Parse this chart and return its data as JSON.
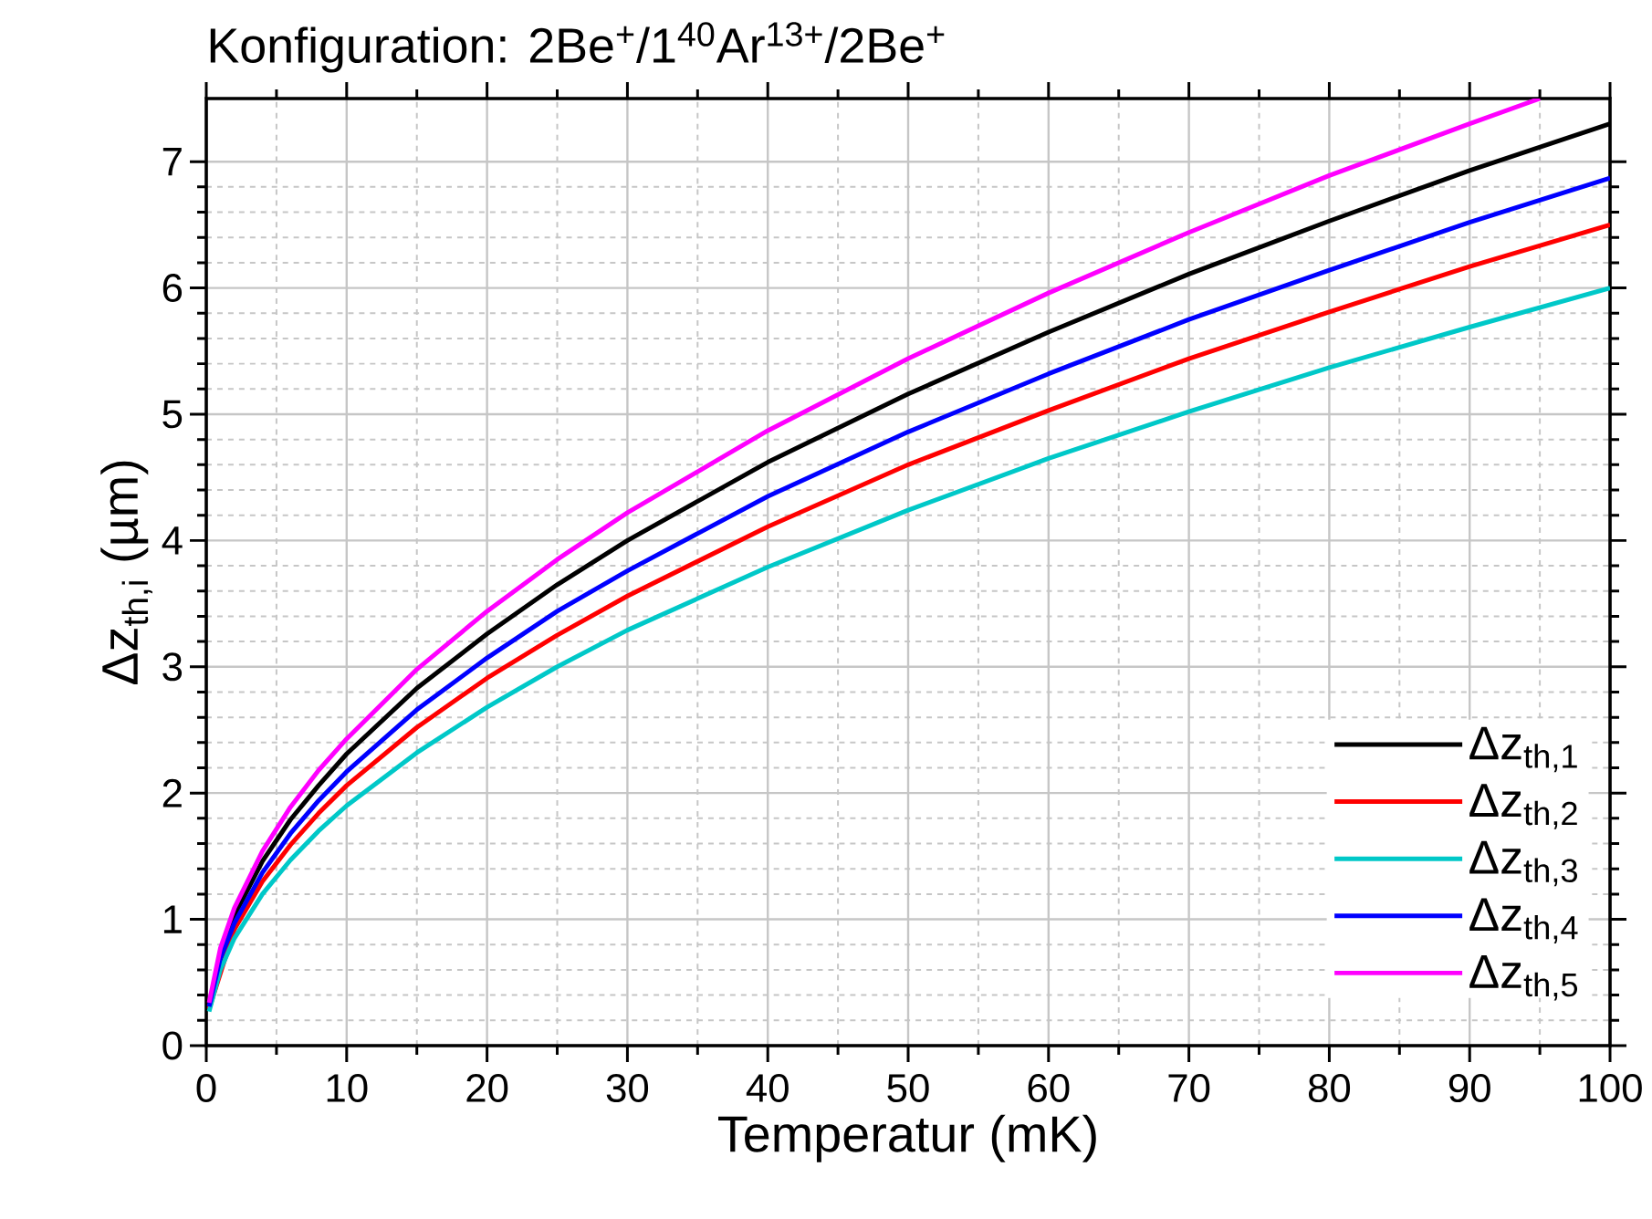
{
  "chart_data": {
    "type": "line",
    "title": "Konfiguration: 2Be$^{+}$/1$^{40}$Ar$^{13+}$/2Be$^{+}$",
    "xlabel": "Temperatur (mK)",
    "ylabel": "Δz$_{th,i}$ (µm)",
    "x": [
      0.2,
      1,
      2,
      4,
      6,
      8,
      10,
      15,
      20,
      25,
      30,
      40,
      50,
      60,
      70,
      80,
      90,
      100
    ],
    "series": [
      {
        "name": "Δz$_{th,1}$",
        "color": "#000000",
        "values": [
          0.33,
          null,
          1.03,
          1.46,
          1.79,
          2.06,
          2.31,
          2.83,
          3.26,
          3.65,
          4.0,
          4.62,
          5.16,
          5.65,
          6.11,
          6.53,
          6.93,
          7.3
        ]
      },
      {
        "name": "Δz$_{th,2}$",
        "color": "#ff0000",
        "values": [
          0.29,
          null,
          0.92,
          1.3,
          1.59,
          1.84,
          2.06,
          2.52,
          2.91,
          3.25,
          3.56,
          4.11,
          4.6,
          5.03,
          5.44,
          5.81,
          6.17,
          6.5
        ]
      },
      {
        "name": "Δz$_{th,3}$",
        "color": "#00c8c8",
        "values": [
          0.27,
          0.6,
          0.85,
          1.2,
          1.47,
          1.7,
          1.9,
          2.32,
          2.68,
          3.0,
          3.29,
          3.79,
          4.24,
          4.65,
          5.02,
          5.37,
          5.69,
          6.0
        ]
      },
      {
        "name": "Δz$_{th,4}$",
        "color": "#0000ff",
        "values": [
          0.31,
          0.69,
          0.97,
          1.37,
          1.68,
          1.94,
          2.17,
          2.66,
          3.07,
          3.44,
          3.76,
          4.35,
          4.86,
          5.32,
          5.75,
          6.14,
          6.52,
          6.87
        ]
      },
      {
        "name": "Δz$_{th,5}$",
        "color": "#ff00ff",
        "x": [
          0.2,
          1,
          2,
          4,
          6,
          8,
          10,
          15,
          20,
          25,
          30,
          40,
          50,
          60,
          70,
          80,
          90,
          95
        ],
        "values": [
          0.34,
          0.77,
          1.09,
          1.54,
          1.89,
          2.18,
          2.43,
          2.98,
          3.44,
          3.85,
          4.22,
          4.87,
          5.44,
          5.96,
          6.44,
          6.89,
          7.3,
          7.5
        ]
      }
    ],
    "xlim": [
      0,
      100
    ],
    "ylim": [
      0,
      7.5
    ],
    "xticks": [
      0,
      10,
      20,
      30,
      40,
      50,
      60,
      70,
      80,
      90,
      100
    ],
    "yticks": [
      0,
      1,
      2,
      3,
      4,
      5,
      6,
      7
    ],
    "grid": true,
    "legend": "bottom right",
    "marker": "none",
    "line_style": "solid"
  }
}
